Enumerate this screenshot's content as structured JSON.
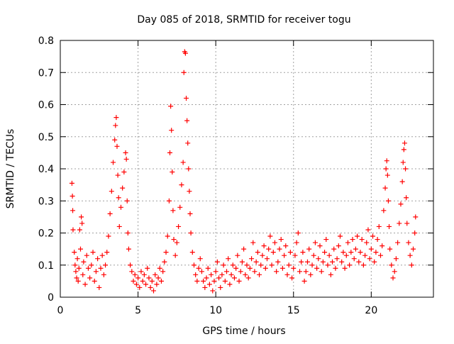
{
  "chart_data": {
    "type": "scatter",
    "title": "Day 085 of 2018, SRMTID for receiver togu",
    "xlabel": "GPS time / hours",
    "ylabel": "SRMTID / TECUs",
    "xlim": [
      0,
      24
    ],
    "ylim": [
      0,
      0.8
    ],
    "xticks": [
      0,
      5,
      10,
      15,
      20
    ],
    "xtick_labels": [
      "0",
      "5",
      "10",
      "15",
      "20"
    ],
    "yticks": [
      0,
      0.1,
      0.2,
      0.3,
      0.4,
      0.5,
      0.6,
      0.7,
      0.8
    ],
    "ytick_labels": [
      "0",
      "0.1",
      "0.2",
      "0.3",
      "0.4",
      "0.5",
      "0.6",
      "0.7",
      "0.8"
    ],
    "grid": true,
    "marker": "+",
    "color": "#ff0000",
    "series": [
      {
        "name": "SRMTID",
        "points": [
          [
            0.75,
            0.355
          ],
          [
            0.78,
            0.315
          ],
          [
            0.8,
            0.27
          ],
          [
            0.82,
            0.21
          ],
          [
            0.9,
            0.14
          ],
          [
            0.95,
            0.1
          ],
          [
            1.0,
            0.08
          ],
          [
            1.05,
            0.06
          ],
          [
            1.1,
            0.12
          ],
          [
            1.15,
            0.05
          ],
          [
            1.2,
            0.09
          ],
          [
            1.25,
            0.21
          ],
          [
            1.3,
            0.15
          ],
          [
            1.35,
            0.25
          ],
          [
            1.4,
            0.23
          ],
          [
            1.45,
            0.07
          ],
          [
            1.5,
            0.11
          ],
          [
            1.6,
            0.04
          ],
          [
            1.7,
            0.13
          ],
          [
            1.8,
            0.09
          ],
          [
            1.9,
            0.06
          ],
          [
            2.0,
            0.1
          ],
          [
            2.1,
            0.14
          ],
          [
            2.2,
            0.05
          ],
          [
            2.3,
            0.08
          ],
          [
            2.4,
            0.12
          ],
          [
            2.5,
            0.03
          ],
          [
            2.6,
            0.09
          ],
          [
            2.7,
            0.13
          ],
          [
            2.8,
            0.07
          ],
          [
            2.9,
            0.1
          ],
          [
            3.0,
            0.14
          ],
          [
            3.1,
            0.19
          ],
          [
            3.2,
            0.26
          ],
          [
            3.3,
            0.33
          ],
          [
            3.4,
            0.42
          ],
          [
            3.5,
            0.49
          ],
          [
            3.55,
            0.535
          ],
          [
            3.6,
            0.56
          ],
          [
            3.65,
            0.47
          ],
          [
            3.7,
            0.38
          ],
          [
            3.75,
            0.31
          ],
          [
            3.8,
            0.22
          ],
          [
            3.9,
            0.28
          ],
          [
            4.0,
            0.34
          ],
          [
            4.1,
            0.39
          ],
          [
            4.2,
            0.45
          ],
          [
            4.25,
            0.43
          ],
          [
            4.3,
            0.3
          ],
          [
            4.35,
            0.2
          ],
          [
            4.4,
            0.15
          ],
          [
            4.5,
            0.1
          ],
          [
            4.6,
            0.08
          ],
          [
            4.7,
            0.05
          ],
          [
            4.8,
            0.07
          ],
          [
            4.9,
            0.04
          ],
          [
            5.0,
            0.06
          ],
          [
            5.1,
            0.03
          ],
          [
            5.2,
            0.08
          ],
          [
            5.3,
            0.05
          ],
          [
            5.4,
            0.07
          ],
          [
            5.5,
            0.04
          ],
          [
            5.6,
            0.09
          ],
          [
            5.7,
            0.06
          ],
          [
            5.8,
            0.03
          ],
          [
            5.9,
            0.05
          ],
          [
            6.0,
            0.02
          ],
          [
            6.1,
            0.07
          ],
          [
            6.2,
            0.04
          ],
          [
            6.3,
            0.06
          ],
          [
            6.4,
            0.09
          ],
          [
            6.5,
            0.05
          ],
          [
            6.6,
            0.08
          ],
          [
            6.7,
            0.11
          ],
          [
            6.8,
            0.14
          ],
          [
            6.9,
            0.19
          ],
          [
            7.0,
            0.3
          ],
          [
            7.05,
            0.45
          ],
          [
            7.1,
            0.595
          ],
          [
            7.15,
            0.52
          ],
          [
            7.2,
            0.39
          ],
          [
            7.25,
            0.27
          ],
          [
            7.3,
            0.18
          ],
          [
            7.4,
            0.13
          ],
          [
            7.5,
            0.17
          ],
          [
            7.6,
            0.22
          ],
          [
            7.7,
            0.28
          ],
          [
            7.8,
            0.35
          ],
          [
            7.9,
            0.42
          ],
          [
            7.95,
            0.7
          ],
          [
            8.0,
            0.765
          ],
          [
            8.05,
            0.76
          ],
          [
            8.1,
            0.62
          ],
          [
            8.15,
            0.55
          ],
          [
            8.2,
            0.48
          ],
          [
            8.25,
            0.4
          ],
          [
            8.3,
            0.33
          ],
          [
            8.35,
            0.26
          ],
          [
            8.4,
            0.2
          ],
          [
            8.5,
            0.14
          ],
          [
            8.6,
            0.1
          ],
          [
            8.7,
            0.07
          ],
          [
            8.8,
            0.05
          ],
          [
            8.9,
            0.09
          ],
          [
            9.0,
            0.12
          ],
          [
            9.1,
            0.08
          ],
          [
            9.2,
            0.05
          ],
          [
            9.3,
            0.03
          ],
          [
            9.4,
            0.06
          ],
          [
            9.5,
            0.09
          ],
          [
            9.6,
            0.04
          ],
          [
            9.7,
            0.07
          ],
          [
            9.8,
            0.02
          ],
          [
            9.9,
            0.05
          ],
          [
            10.0,
            0.08
          ],
          [
            10.1,
            0.11
          ],
          [
            10.2,
            0.06
          ],
          [
            10.3,
            0.03
          ],
          [
            10.4,
            0.07
          ],
          [
            10.5,
            0.1
          ],
          [
            10.6,
            0.05
          ],
          [
            10.7,
            0.08
          ],
          [
            10.8,
            0.12
          ],
          [
            10.9,
            0.04
          ],
          [
            11.0,
            0.07
          ],
          [
            11.1,
            0.1
          ],
          [
            11.2,
            0.06
          ],
          [
            11.3,
            0.09
          ],
          [
            11.4,
            0.13
          ],
          [
            11.5,
            0.05
          ],
          [
            11.6,
            0.08
          ],
          [
            11.7,
            0.11
          ],
          [
            11.8,
            0.15
          ],
          [
            11.9,
            0.07
          ],
          [
            12.0,
            0.1
          ],
          [
            12.1,
            0.06
          ],
          [
            12.2,
            0.09
          ],
          [
            12.3,
            0.12
          ],
          [
            12.4,
            0.17
          ],
          [
            12.5,
            0.08
          ],
          [
            12.6,
            0.11
          ],
          [
            12.7,
            0.14
          ],
          [
            12.8,
            0.07
          ],
          [
            12.9,
            0.1
          ],
          [
            13.0,
            0.13
          ],
          [
            13.1,
            0.16
          ],
          [
            13.2,
            0.09
          ],
          [
            13.3,
            0.12
          ],
          [
            13.4,
            0.15
          ],
          [
            13.5,
            0.19
          ],
          [
            13.6,
            0.1
          ],
          [
            13.7,
            0.14
          ],
          [
            13.8,
            0.17
          ],
          [
            13.9,
            0.08
          ],
          [
            14.0,
            0.11
          ],
          [
            14.1,
            0.15
          ],
          [
            14.2,
            0.18
          ],
          [
            14.3,
            0.09
          ],
          [
            14.4,
            0.13
          ],
          [
            14.5,
            0.16
          ],
          [
            14.6,
            0.07
          ],
          [
            14.7,
            0.1
          ],
          [
            14.8,
            0.14
          ],
          [
            14.9,
            0.06
          ],
          [
            15.0,
            0.09
          ],
          [
            15.1,
            0.13
          ],
          [
            15.2,
            0.17
          ],
          [
            15.3,
            0.2
          ],
          [
            15.4,
            0.08
          ],
          [
            15.5,
            0.11
          ],
          [
            15.6,
            0.14
          ],
          [
            15.7,
            0.05
          ],
          [
            15.8,
            0.08
          ],
          [
            15.9,
            0.11
          ],
          [
            16.0,
            0.15
          ],
          [
            16.1,
            0.07
          ],
          [
            16.2,
            0.1
          ],
          [
            16.3,
            0.13
          ],
          [
            16.4,
            0.17
          ],
          [
            16.5,
            0.09
          ],
          [
            16.6,
            0.12
          ],
          [
            16.7,
            0.16
          ],
          [
            16.8,
            0.08
          ],
          [
            16.9,
            0.11
          ],
          [
            17.0,
            0.14
          ],
          [
            17.1,
            0.18
          ],
          [
            17.2,
            0.1
          ],
          [
            17.3,
            0.13
          ],
          [
            17.4,
            0.07
          ],
          [
            17.5,
            0.11
          ],
          [
            17.6,
            0.15
          ],
          [
            17.7,
            0.09
          ],
          [
            17.8,
            0.12
          ],
          [
            17.9,
            0.16
          ],
          [
            18.0,
            0.19
          ],
          [
            18.1,
            0.11
          ],
          [
            18.2,
            0.14
          ],
          [
            18.3,
            0.09
          ],
          [
            18.4,
            0.13
          ],
          [
            18.5,
            0.17
          ],
          [
            18.6,
            0.1
          ],
          [
            18.7,
            0.14
          ],
          [
            18.8,
            0.18
          ],
          [
            18.9,
            0.12
          ],
          [
            19.0,
            0.15
          ],
          [
            19.1,
            0.19
          ],
          [
            19.2,
            0.11
          ],
          [
            19.3,
            0.14
          ],
          [
            19.4,
            0.18
          ],
          [
            19.5,
            0.1
          ],
          [
            19.6,
            0.13
          ],
          [
            19.7,
            0.17
          ],
          [
            19.8,
            0.21
          ],
          [
            19.9,
            0.12
          ],
          [
            20.0,
            0.15
          ],
          [
            20.1,
            0.19
          ],
          [
            20.2,
            0.11
          ],
          [
            20.3,
            0.14
          ],
          [
            20.4,
            0.18
          ],
          [
            20.5,
            0.22
          ],
          [
            20.6,
            0.13
          ],
          [
            20.7,
            0.16
          ],
          [
            20.8,
            0.27
          ],
          [
            20.9,
            0.34
          ],
          [
            20.95,
            0.4
          ],
          [
            21.0,
            0.425
          ],
          [
            21.05,
            0.38
          ],
          [
            21.1,
            0.3
          ],
          [
            21.15,
            0.22
          ],
          [
            21.2,
            0.15
          ],
          [
            21.3,
            0.1
          ],
          [
            21.4,
            0.06
          ],
          [
            21.5,
            0.08
          ],
          [
            21.6,
            0.12
          ],
          [
            21.7,
            0.17
          ],
          [
            21.8,
            0.23
          ],
          [
            21.9,
            0.29
          ],
          [
            22.0,
            0.36
          ],
          [
            22.05,
            0.42
          ],
          [
            22.1,
            0.46
          ],
          [
            22.15,
            0.48
          ],
          [
            22.2,
            0.4
          ],
          [
            22.25,
            0.31
          ],
          [
            22.3,
            0.23
          ],
          [
            22.4,
            0.17
          ],
          [
            22.5,
            0.13
          ],
          [
            22.6,
            0.1
          ],
          [
            22.7,
            0.15
          ],
          [
            22.8,
            0.2
          ],
          [
            22.85,
            0.25
          ]
        ]
      }
    ]
  }
}
